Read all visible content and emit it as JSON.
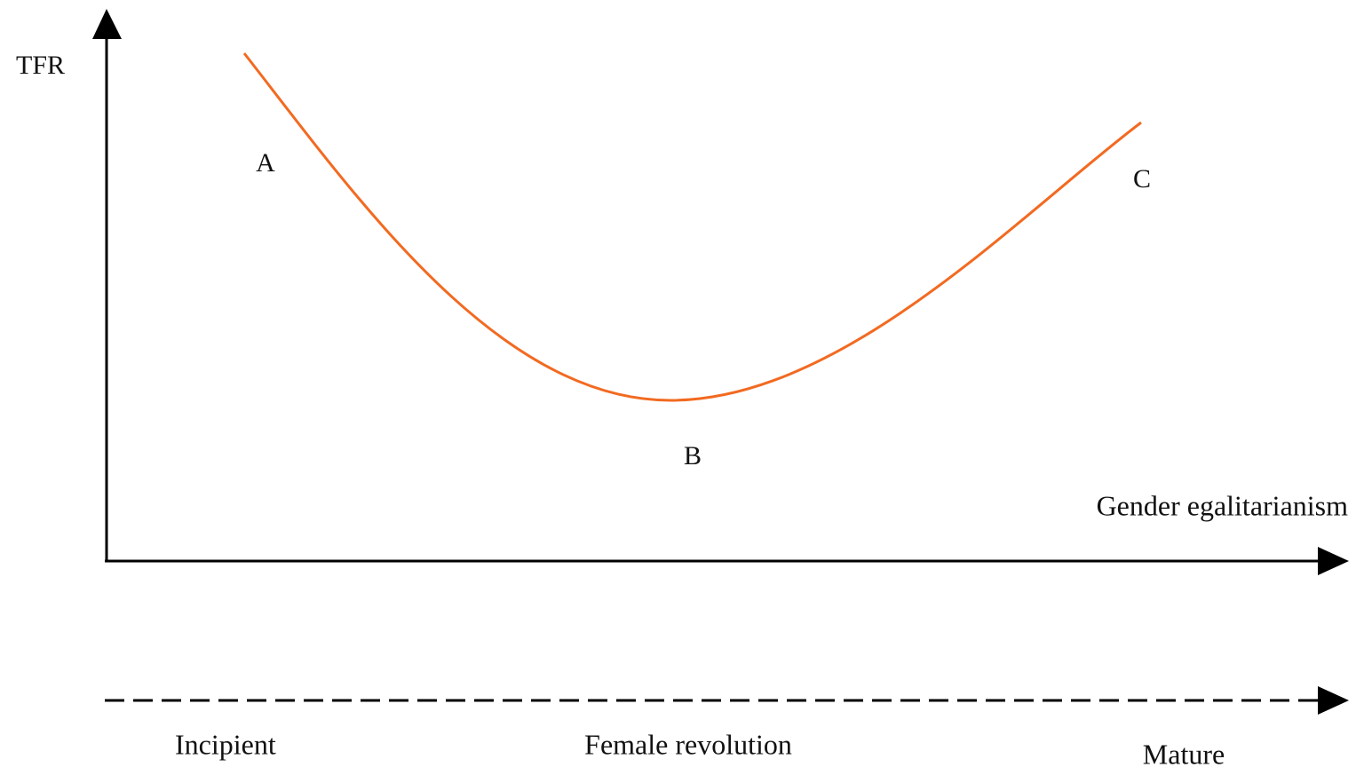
{
  "axes": {
    "y_label": "TFR",
    "x_label": "Gender egalitarianism"
  },
  "points": [
    {
      "label": "A"
    },
    {
      "label": "B"
    },
    {
      "label": "C"
    }
  ],
  "stages": [
    "Incipient",
    "Female revolution",
    "Mature"
  ]
}
